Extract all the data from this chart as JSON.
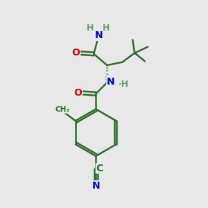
{
  "bg_color": "#e8e8e8",
  "bond_color": "#2d6b2d",
  "bond_width": 1.8,
  "atom_colors": {
    "O": "#dd0000",
    "N": "#0000cc",
    "C": "#2d6b2d",
    "H": "#6b9b6b"
  },
  "font_size_atom": 10,
  "font_size_h": 8,
  "font_size_small": 8
}
